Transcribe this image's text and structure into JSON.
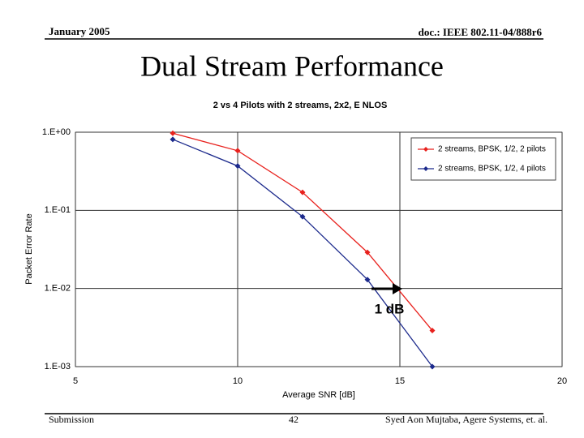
{
  "header": {
    "date": "January 2005",
    "doc": "doc.: IEEE 802.11-04/888r6"
  },
  "slide_title": "Dual Stream Performance",
  "footer": {
    "left": "Submission",
    "page": "42",
    "right": "Syed Aon Mujtaba, Agere Systems, et. al."
  },
  "chart_data": {
    "type": "line",
    "title": "2 vs 4 Pilots with 2 streams, 2x2, E NLOS",
    "x_label": "Average SNR [dB]",
    "y_label": "Packet Error Rate",
    "x": [
      8,
      10,
      12,
      14,
      16
    ],
    "series": [
      {
        "name": "2 streams, BPSK, 1/2, 2 pilots",
        "color": "#e8211d",
        "values": [
          0.97,
          0.58,
          0.17,
          0.029,
          0.0029
        ]
      },
      {
        "name": "2 streams, BPSK, 1/2, 4 pilots",
        "color": "#1c2a8c",
        "values": [
          0.81,
          0.37,
          0.083,
          0.013,
          0.001
        ]
      }
    ],
    "xlim": [
      5,
      20
    ],
    "xticks": [
      5,
      10,
      15,
      20
    ],
    "ylim": [
      0.001,
      1
    ],
    "log_y": true,
    "yticks": [
      {
        "value": 1,
        "label": "1.E+00"
      },
      {
        "value": 0.1,
        "label": "1.E-01"
      },
      {
        "value": 0.01,
        "label": "1.E-02"
      },
      {
        "value": 0.001,
        "label": "1.E-03"
      }
    ],
    "grid": true,
    "legend": "upper right",
    "annotation": "1 dB"
  }
}
